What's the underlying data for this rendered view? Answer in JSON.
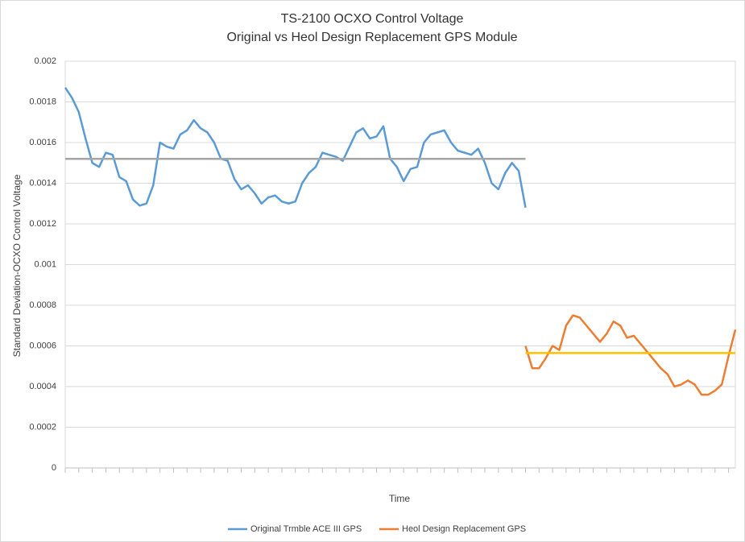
{
  "chart_data": {
    "type": "line",
    "title": "TS-2100 OCXO Control Voltage",
    "subtitle": "Original vs Heol Design Replacement GPS Module",
    "x_label": "Time",
    "y_label": "Standard Deviation-OCXO Control Voltage",
    "categories": [
      null,
      null,
      null,
      null,
      null,
      null,
      null,
      null,
      null,
      null,
      null,
      null,
      null,
      null,
      null,
      null,
      null,
      null,
      null,
      null,
      null,
      null,
      null,
      null,
      null,
      null,
      null,
      null,
      null,
      null,
      null,
      null,
      null,
      null,
      null,
      null,
      null,
      null,
      null,
      null,
      null,
      null,
      null,
      null,
      null,
      null,
      null,
      null,
      null,
      null,
      null,
      null,
      null,
      null,
      null,
      null,
      null,
      null,
      null,
      null,
      null,
      null,
      null,
      null,
      null,
      null,
      null,
      null,
      null,
      null,
      null,
      null,
      null,
      null,
      null,
      null,
      null,
      null,
      null,
      null,
      null,
      null,
      null,
      null,
      null,
      null,
      null,
      null,
      null,
      null,
      null,
      null,
      null,
      null,
      null,
      null,
      null,
      null,
      null,
      null
    ],
    "series": [
      {
        "name": "Original Trmble ACE III GPS",
        "color": "#5b9bd5",
        "values": [
          0.00187,
          0.00182,
          0.00175,
          0.00162,
          0.0015,
          0.00148,
          0.00155,
          0.00154,
          0.00143,
          0.00141,
          0.00132,
          0.00129,
          0.0013,
          0.00139,
          0.0016,
          0.00158,
          0.00157,
          0.00164,
          0.00166,
          0.00171,
          0.00167,
          0.00165,
          0.0016,
          0.00152,
          0.00151,
          0.00142,
          0.00137,
          0.00139,
          0.00135,
          0.0013,
          0.00133,
          0.00134,
          0.00131,
          0.0013,
          0.00131,
          0.0014,
          0.00145,
          0.00148,
          0.00155,
          0.00154,
          0.00153,
          0.00151,
          0.00158,
          0.00165,
          0.00167,
          0.00162,
          0.00163,
          0.00168,
          0.00152,
          0.00148,
          0.00141,
          0.00147,
          0.00148,
          0.0016,
          0.00164,
          0.00165,
          0.00166,
          0.0016,
          0.00156,
          0.00155,
          0.00154,
          0.00157,
          0.0015,
          0.0014,
          0.00137,
          0.00145,
          0.0015,
          0.00146,
          0.00128,
          null,
          null,
          null,
          null,
          null,
          null,
          null,
          null,
          null,
          null,
          null,
          null,
          null,
          null,
          null,
          null,
          null,
          null,
          null,
          null,
          null,
          null,
          null,
          null,
          null,
          null,
          null,
          null,
          null,
          null,
          null
        ]
      },
      {
        "name": "Heol Design Replacement GPS",
        "color": "#ed7d31",
        "values": [
          null,
          null,
          null,
          null,
          null,
          null,
          null,
          null,
          null,
          null,
          null,
          null,
          null,
          null,
          null,
          null,
          null,
          null,
          null,
          null,
          null,
          null,
          null,
          null,
          null,
          null,
          null,
          null,
          null,
          null,
          null,
          null,
          null,
          null,
          null,
          null,
          null,
          null,
          null,
          null,
          null,
          null,
          null,
          null,
          null,
          null,
          null,
          null,
          null,
          null,
          null,
          null,
          null,
          null,
          null,
          null,
          null,
          null,
          null,
          null,
          null,
          null,
          null,
          null,
          null,
          null,
          null,
          null,
          0.0006,
          0.00049,
          0.00049,
          0.00054,
          0.0006,
          0.00058,
          0.0007,
          0.00075,
          0.00074,
          0.0007,
          0.00066,
          0.00062,
          0.00066,
          0.00072,
          0.0007,
          0.00064,
          0.00065,
          0.00061,
          0.00057,
          0.00053,
          0.00049,
          0.00046,
          0.0004,
          0.00041,
          0.00043,
          0.00041,
          0.00036,
          0.00036,
          0.00038,
          0.00041,
          0.00055,
          0.00068
        ]
      }
    ],
    "mean_lines": [
      {
        "value": 0.00152,
        "color": "#a5a5a5"
      },
      {
        "value": 0.000565,
        "color": "#ffc000"
      }
    ],
    "ylim": [
      0,
      0.002
    ],
    "yticks": [
      0,
      0.0002,
      0.0004,
      0.0006,
      0.0008,
      0.001,
      0.0012,
      0.0014,
      0.0016,
      0.0018,
      0.002
    ],
    "grid": true,
    "legend": "bottom"
  }
}
